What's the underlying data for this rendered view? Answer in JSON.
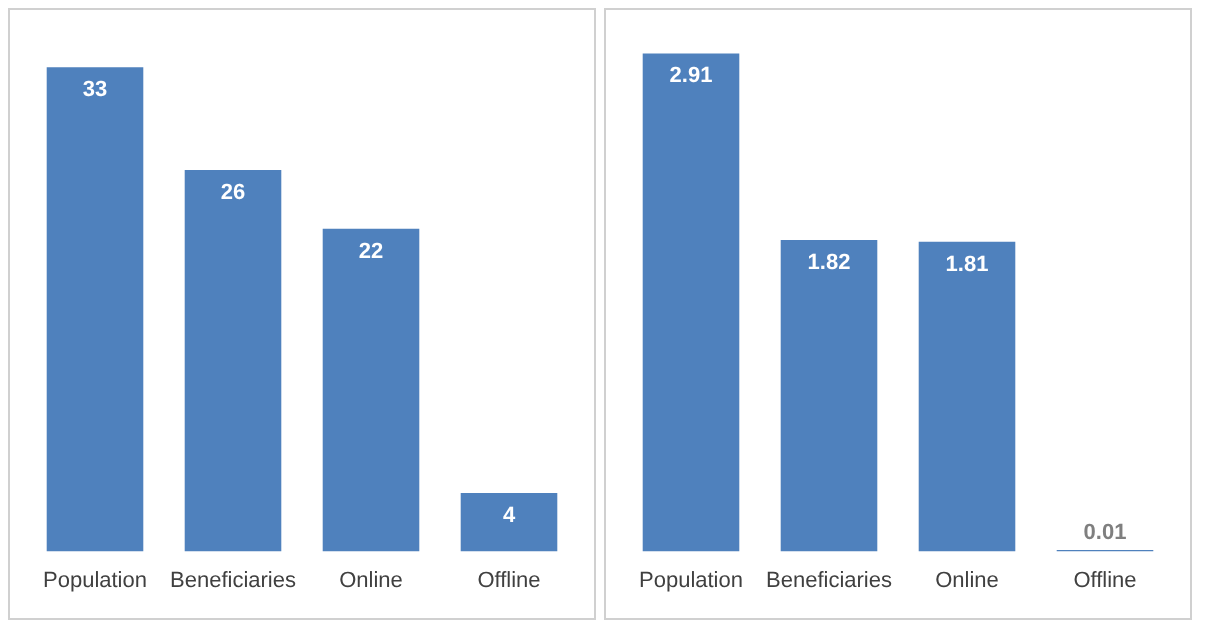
{
  "chart_data": [
    {
      "type": "bar",
      "categories": [
        "Population",
        "Beneficiaries",
        "Online",
        "Offline"
      ],
      "values": [
        33,
        26,
        22,
        4
      ],
      "color": "#4f81bd",
      "data_labels": true,
      "grid": false,
      "tick_labels": "x"
    },
    {
      "type": "bar",
      "categories": [
        "Population",
        "Beneficiaries",
        "Online",
        "Offline"
      ],
      "values": [
        2.91,
        1.82,
        1.81,
        0.01
      ],
      "color": "#4f81bd",
      "data_labels": true,
      "grid": false,
      "tick_labels": "x"
    }
  ]
}
